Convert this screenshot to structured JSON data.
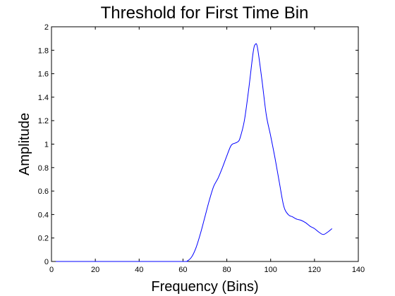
{
  "chart_data": {
    "type": "line",
    "title": "Threshold for First Time Bin",
    "xlabel": "Frequency (Bins)",
    "ylabel": "Amplitude",
    "xlim": [
      0,
      140
    ],
    "ylim": [
      0,
      2
    ],
    "xticks": [
      0,
      20,
      40,
      60,
      80,
      100,
      120,
      140
    ],
    "yticks": [
      0,
      0.2,
      0.4,
      0.6,
      0.8,
      1,
      1.2,
      1.4,
      1.6,
      1.8,
      2
    ],
    "grid": false,
    "line_color": "#0000ff",
    "series": [
      {
        "x": [
          2,
          20,
          40,
          60,
          62,
          64,
          66,
          68,
          70,
          72,
          74,
          76,
          78,
          80,
          82,
          84,
          85,
          86,
          88,
          90,
          92,
          93,
          94,
          96,
          98,
          100,
          102,
          104,
          106,
          108,
          110,
          112,
          114,
          116,
          118,
          120,
          122,
          124,
          126,
          128
        ],
        "y": [
          0,
          0,
          0,
          0,
          0.005,
          0.04,
          0.12,
          0.24,
          0.38,
          0.52,
          0.64,
          0.71,
          0.8,
          0.9,
          0.99,
          1.01,
          1.02,
          1.05,
          1.2,
          1.47,
          1.78,
          1.85,
          1.82,
          1.55,
          1.25,
          1.07,
          0.88,
          0.67,
          0.47,
          0.4,
          0.38,
          0.36,
          0.35,
          0.33,
          0.3,
          0.28,
          0.25,
          0.23,
          0.25,
          0.28
        ]
      }
    ]
  }
}
